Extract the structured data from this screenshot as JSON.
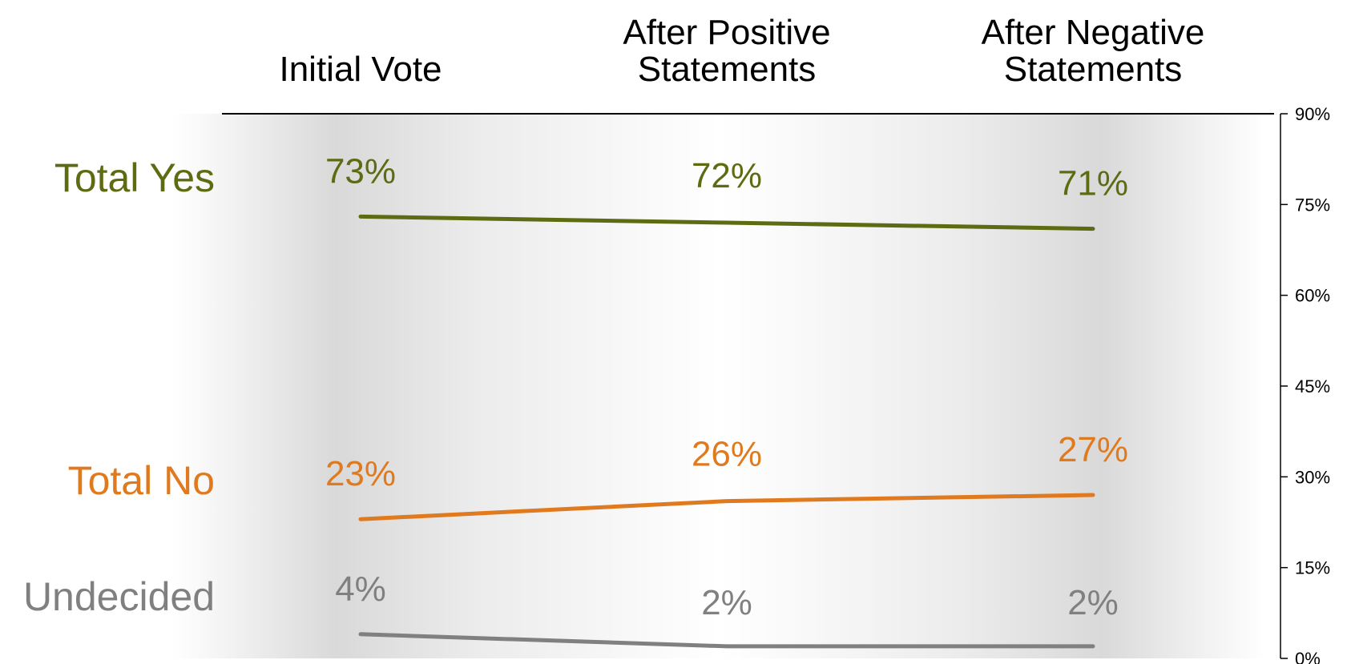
{
  "chart_data": {
    "type": "line",
    "categories": [
      [
        "Initial Vote"
      ],
      [
        "After Positive",
        "Statements"
      ],
      [
        "After Negative",
        "Statements"
      ]
    ],
    "series": [
      {
        "name": "Total Yes",
        "values": [
          73,
          72,
          71
        ],
        "labels": [
          "73%",
          "72%",
          "71%"
        ],
        "color": "#5f6b13"
      },
      {
        "name": "Total No",
        "values": [
          23,
          26,
          27
        ],
        "labels": [
          "23%",
          "26%",
          "27%"
        ],
        "color": "#e07a1f"
      },
      {
        "name": "Undecided",
        "values": [
          4,
          2,
          2
        ],
        "labels": [
          "4%",
          "2%",
          "2%"
        ],
        "color": "#808080"
      }
    ],
    "y_axis": {
      "position": "right",
      "min": 0,
      "max": 90,
      "ticks": [
        0,
        15,
        30,
        45,
        60,
        75,
        90
      ],
      "tick_labels": [
        "0%",
        "15%",
        "30%",
        "45%",
        "60%",
        "75%",
        "90%"
      ]
    },
    "background": "gray-white-gray gradient band",
    "grid": false,
    "legend": "left, series names aligned with lines"
  }
}
